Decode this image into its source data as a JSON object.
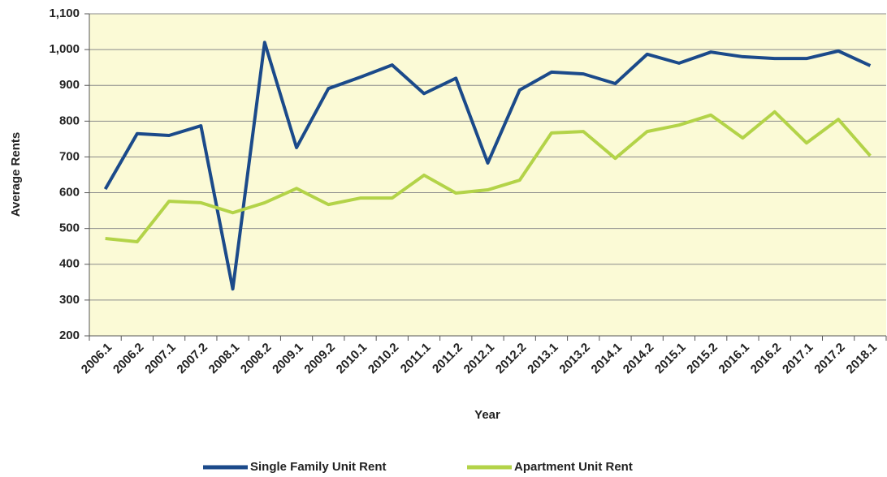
{
  "chart_data": {
    "type": "line",
    "x_label": "Year",
    "y_label": "Average Rents",
    "categories": [
      "2006.1",
      "2006.2",
      "2007.1",
      "2007.2",
      "2008.1",
      "2008.2",
      "2009.1",
      "2009.2",
      "2010.1",
      "2010.2",
      "2011.1",
      "2011.2",
      "2012.1",
      "2012.2",
      "2013.1",
      "2013.2",
      "2014.1",
      "2014.2",
      "2015.1",
      "2015.2",
      "2016.1",
      "2016.2",
      "2017.1",
      "2017.2",
      "2018.1"
    ],
    "series": [
      {
        "name": "Single Family Unit Rent",
        "color": "#1b4a8a",
        "values": [
          610,
          765,
          760,
          787,
          331,
          1020,
          726,
          891,
          923,
          957,
          877,
          920,
          683,
          887,
          937,
          932,
          905,
          987,
          962,
          993,
          980,
          975,
          975,
          996,
          955
        ]
      },
      {
        "name": "Apartment Unit Rent",
        "color": "#b3d348",
        "values": [
          472,
          463,
          576,
          572,
          544,
          572,
          612,
          567,
          585,
          585,
          649,
          599,
          608,
          635,
          767,
          771,
          696,
          771,
          789,
          817,
          753,
          826,
          739,
          805,
          703
        ]
      }
    ],
    "ylim": [
      200,
      1100
    ],
    "yticks": [
      200,
      300,
      400,
      500,
      600,
      700,
      800,
      900,
      {
        "value": 1000,
        "label": "1,000"
      },
      {
        "value": 1100,
        "label": "1,100"
      }
    ],
    "grid": true,
    "background": "#fbfad6",
    "legend": "bottom"
  }
}
